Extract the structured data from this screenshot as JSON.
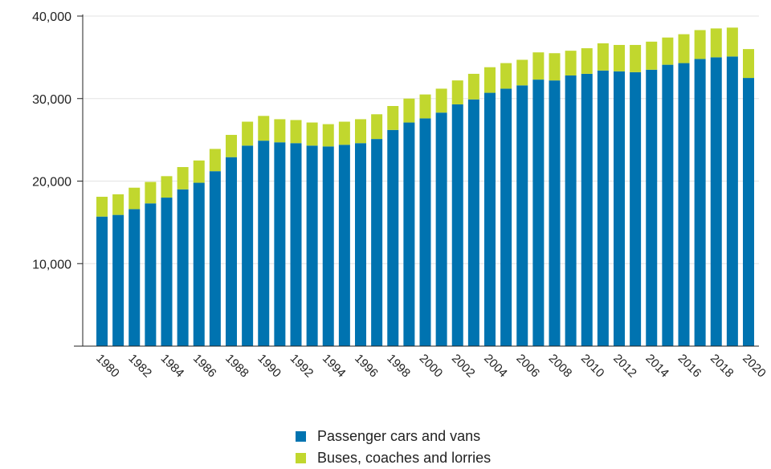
{
  "chart_data": {
    "type": "bar",
    "stacked": true,
    "title": "",
    "xlabel": "",
    "ylabel": "",
    "ylim": [
      0,
      40000
    ],
    "yticks": [
      10000,
      20000,
      30000,
      40000
    ],
    "ytick_labels": [
      "10,000",
      "20,000",
      "30,000",
      "40,000"
    ],
    "grid": true,
    "legend_position": "bottom",
    "categories": [
      1980,
      1981,
      1982,
      1983,
      1984,
      1985,
      1986,
      1987,
      1988,
      1989,
      1990,
      1991,
      1992,
      1993,
      1994,
      1995,
      1996,
      1997,
      1998,
      1999,
      2000,
      2001,
      2002,
      2003,
      2004,
      2005,
      2006,
      2007,
      2008,
      2009,
      2010,
      2011,
      2012,
      2013,
      2014,
      2015,
      2016,
      2017,
      2018,
      2019,
      2020
    ],
    "xtick_labels": [
      "1980",
      "1982",
      "1984",
      "1986",
      "1988",
      "1990",
      "1992",
      "1994",
      "1996",
      "1998",
      "2000",
      "2002",
      "2004",
      "2006",
      "2008",
      "2010",
      "2012",
      "2014",
      "2016",
      "2018",
      "2020"
    ],
    "series": [
      {
        "name": "Passenger cars and vans",
        "color": "#0073b0",
        "values": [
          15700,
          15900,
          16600,
          17300,
          18000,
          19000,
          19800,
          21200,
          22900,
          24300,
          24900,
          24700,
          24600,
          24300,
          24200,
          24400,
          24600,
          25100,
          26200,
          27100,
          27600,
          28300,
          29300,
          29900,
          30700,
          31200,
          31600,
          32300,
          32200,
          32800,
          33000,
          33400,
          33300,
          33200,
          33500,
          34100,
          34300,
          34800,
          35000,
          35100,
          32500
        ]
      },
      {
        "name": "Buses, coaches and lorries",
        "color": "#c1d72e",
        "values": [
          2400,
          2500,
          2600,
          2600,
          2600,
          2700,
          2700,
          2700,
          2700,
          2900,
          3000,
          2800,
          2800,
          2800,
          2700,
          2800,
          2900,
          3000,
          2900,
          2900,
          2900,
          2900,
          2900,
          3100,
          3100,
          3100,
          3100,
          3300,
          3300,
          3000,
          3100,
          3300,
          3200,
          3300,
          3400,
          3300,
          3500,
          3500,
          3500,
          3500,
          3500
        ]
      }
    ]
  }
}
